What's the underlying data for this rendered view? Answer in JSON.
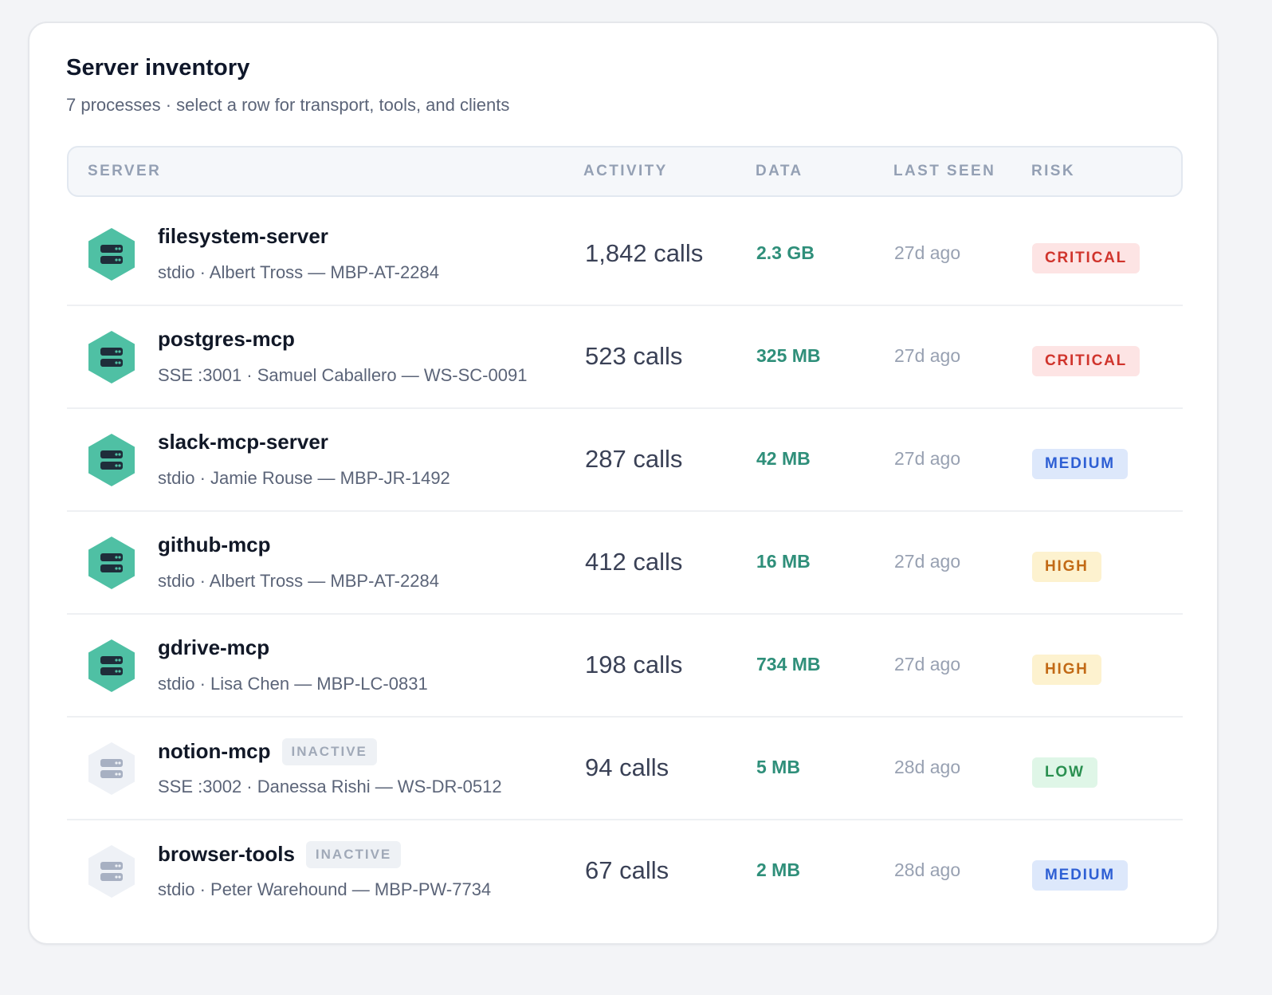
{
  "card": {
    "title": "Server inventory",
    "subtitle": "7 processes · select a row for transport, tools, and clients"
  },
  "columns": {
    "server": "SERVER",
    "activity": "ACTIVITY",
    "data": "DATA",
    "last_seen": "LAST SEEN",
    "risk": "RISK"
  },
  "colors": {
    "active_icon": "#4fc0a4",
    "inactive_icon": "#eef1f6",
    "data_value": "#2f8f7a",
    "critical": "#d0342c",
    "high": "#c26a16",
    "medium": "#2e5fd4",
    "low": "#2a9050"
  },
  "rows": [
    {
      "icon": "server-icon",
      "name": "filesystem-server",
      "status": "",
      "meta": "stdio · Albert Tross — MBP-AT-2284",
      "activity": "1,842 calls",
      "data": "2.3 GB",
      "last_seen": "27d ago",
      "risk": "CRITICAL",
      "risk_level": "critical",
      "active": true
    },
    {
      "icon": "server-icon",
      "name": "postgres-mcp",
      "status": "",
      "meta": "SSE :3001 · Samuel Caballero — WS-SC-0091",
      "activity": "523 calls",
      "data": "325 MB",
      "last_seen": "27d ago",
      "risk": "CRITICAL",
      "risk_level": "critical",
      "active": true
    },
    {
      "icon": "server-icon",
      "name": "slack-mcp-server",
      "status": "",
      "meta": "stdio · Jamie Rouse — MBP-JR-1492",
      "activity": "287 calls",
      "data": "42 MB",
      "last_seen": "27d ago",
      "risk": "MEDIUM",
      "risk_level": "medium",
      "active": true
    },
    {
      "icon": "server-icon",
      "name": "github-mcp",
      "status": "",
      "meta": "stdio · Albert Tross — MBP-AT-2284",
      "activity": "412 calls",
      "data": "16 MB",
      "last_seen": "27d ago",
      "risk": "HIGH",
      "risk_level": "high",
      "active": true
    },
    {
      "icon": "server-icon",
      "name": "gdrive-mcp",
      "status": "",
      "meta": "stdio · Lisa Chen — MBP-LC-0831",
      "activity": "198 calls",
      "data": "734 MB",
      "last_seen": "27d ago",
      "risk": "HIGH",
      "risk_level": "high",
      "active": true
    },
    {
      "icon": "server-icon",
      "name": "notion-mcp",
      "status": "INACTIVE",
      "meta": "SSE :3002 · Danessa Rishi — WS-DR-0512",
      "activity": "94 calls",
      "data": "5 MB",
      "last_seen": "28d ago",
      "risk": "LOW",
      "risk_level": "low",
      "active": false
    },
    {
      "icon": "server-icon",
      "name": "browser-tools",
      "status": "INACTIVE",
      "meta": "stdio · Peter Warehound — MBP-PW-7734",
      "activity": "67 calls",
      "data": "2 MB",
      "last_seen": "28d ago",
      "risk": "MEDIUM",
      "risk_level": "medium",
      "active": false
    }
  ]
}
